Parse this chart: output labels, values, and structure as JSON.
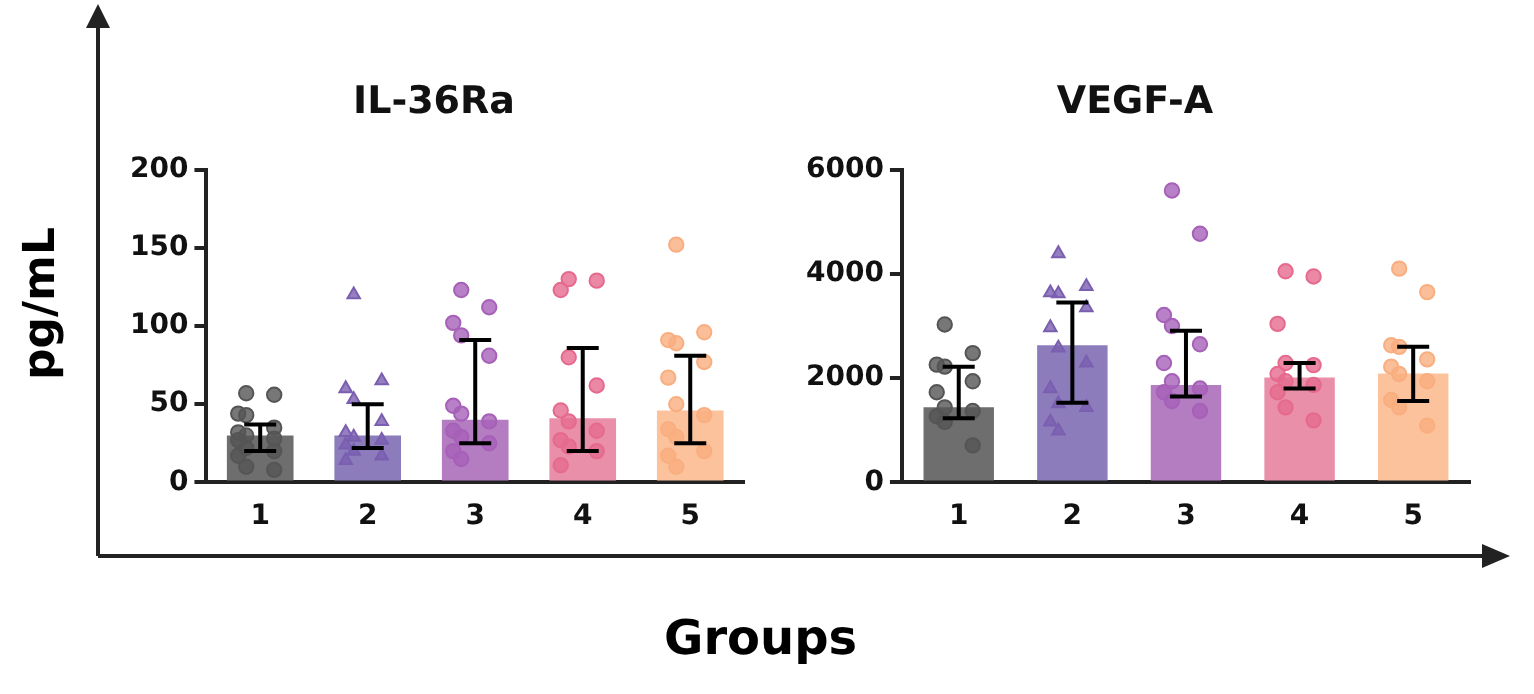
{
  "chart_data": [
    {
      "type": "bar",
      "title": "IL-36Ra",
      "ylabel": "pg/mL",
      "categories": [
        "1",
        "2",
        "3",
        "4",
        "5"
      ],
      "values": [
        30,
        30,
        40,
        41,
        46
      ],
      "colors": [
        "#6e6e6e",
        "#8c7cbc",
        "#b47dc2",
        "#ea8faa",
        "#fcc29c"
      ],
      "errors": [
        [
          20,
          37
        ],
        [
          22,
          50
        ],
        [
          25,
          91
        ],
        [
          20,
          86
        ],
        [
          25,
          81
        ]
      ],
      "ylim": [
        0,
        200
      ],
      "yticks": [
        0,
        50,
        100,
        150,
        200
      ],
      "grid": false,
      "legend": false,
      "series": [
        {
          "type": "scatter",
          "marker": "circle",
          "color": "#555555",
          "x": [
            "1",
            "1",
            "1",
            "1",
            "1",
            "1",
            "1",
            "1",
            "1",
            "1",
            "1",
            "1",
            "1",
            "1"
          ],
          "values": [
            57,
            56,
            44,
            43,
            35,
            32,
            30,
            28,
            27,
            22,
            20,
            17,
            10,
            8
          ]
        },
        {
          "type": "scatter",
          "marker": "triangle",
          "color": "#7a5fb0",
          "x": [
            "2",
            "2",
            "2",
            "2",
            "2",
            "2",
            "2",
            "2",
            "2",
            "2",
            "2",
            "2"
          ],
          "values": [
            120,
            65,
            60,
            53,
            39,
            32,
            29,
            27,
            24,
            20,
            17,
            14
          ]
        },
        {
          "type": "scatter",
          "marker": "circle",
          "color": "#a660b8",
          "x": [
            "3",
            "3",
            "3",
            "3",
            "3",
            "3",
            "3",
            "3",
            "3",
            "3",
            "3",
            "3",
            "3"
          ],
          "values": [
            123,
            112,
            102,
            94,
            81,
            49,
            44,
            39,
            33,
            29,
            25,
            20,
            15
          ]
        },
        {
          "type": "scatter",
          "marker": "circle",
          "color": "#e56a8e",
          "x": [
            "4",
            "4",
            "4",
            "4",
            "4",
            "4",
            "4",
            "4",
            "4",
            "4",
            "4",
            "4"
          ],
          "values": [
            130,
            129,
            123,
            80,
            62,
            46,
            39,
            33,
            27,
            23,
            20,
            11
          ]
        },
        {
          "type": "scatter",
          "marker": "circle",
          "color": "#f9ae80",
          "x": [
            "5",
            "5",
            "5",
            "5",
            "5",
            "5",
            "5",
            "5",
            "5",
            "5",
            "5",
            "5",
            "5"
          ],
          "values": [
            152,
            96,
            91,
            89,
            77,
            67,
            50,
            43,
            34,
            29,
            20,
            17,
            10
          ]
        }
      ]
    },
    {
      "type": "bar",
      "title": "VEGF-A",
      "xlabel": "Groups",
      "categories": [
        "1",
        "2",
        "3",
        "4",
        "5"
      ],
      "values": [
        1440,
        2630,
        1870,
        2010,
        2090
      ],
      "colors": [
        "#6e6e6e",
        "#8c7cbc",
        "#b47dc2",
        "#ea8faa",
        "#fcc29c"
      ],
      "errors": [
        [
          1230,
          2220
        ],
        [
          1530,
          3450
        ],
        [
          1650,
          2910
        ],
        [
          1800,
          2290
        ],
        [
          1560,
          2600
        ]
      ],
      "ylim": [
        0,
        6000
      ],
      "yticks": [
        0,
        2000,
        4000,
        6000
      ],
      "grid": false,
      "legend": false,
      "series": [
        {
          "type": "scatter",
          "marker": "circle",
          "color": "#555555",
          "x": [
            "1",
            "1",
            "1",
            "1",
            "1",
            "1",
            "1",
            "1",
            "1",
            "1",
            "1"
          ],
          "values": [
            3030,
            2480,
            2260,
            2220,
            1940,
            1730,
            1440,
            1370,
            1270,
            1160,
            710
          ]
        },
        {
          "type": "scatter",
          "marker": "triangle",
          "color": "#7a5fb0",
          "x": [
            "2",
            "2",
            "2",
            "2",
            "2",
            "2",
            "2",
            "2",
            "2",
            "2",
            "2",
            "2",
            "2"
          ],
          "values": [
            4390,
            3760,
            3640,
            3620,
            3350,
            2970,
            2580,
            2290,
            1800,
            1510,
            1440,
            1160,
            990
          ]
        },
        {
          "type": "scatter",
          "marker": "circle",
          "color": "#a660b8",
          "x": [
            "3",
            "3",
            "3",
            "3",
            "3",
            "3",
            "3",
            "3",
            "3",
            "3",
            "3"
          ],
          "values": [
            5600,
            4770,
            3210,
            3000,
            2650,
            2290,
            1940,
            1800,
            1730,
            1560,
            1370
          ]
        },
        {
          "type": "scatter",
          "marker": "circle",
          "color": "#e56a8e",
          "x": [
            "4",
            "4",
            "4",
            "4",
            "4",
            "4",
            "4",
            "4",
            "4",
            "4",
            "4"
          ],
          "values": [
            4050,
            3950,
            3040,
            2290,
            2250,
            2080,
            1940,
            1870,
            1730,
            1440,
            1190
          ]
        },
        {
          "type": "scatter",
          "marker": "circle",
          "color": "#f9ae80",
          "x": [
            "5",
            "5",
            "5",
            "5",
            "5",
            "5",
            "5",
            "5",
            "5",
            "5",
            "5"
          ],
          "values": [
            4100,
            3650,
            2630,
            2600,
            2360,
            2220,
            2080,
            1940,
            1580,
            1440,
            1090
          ]
        }
      ]
    }
  ]
}
